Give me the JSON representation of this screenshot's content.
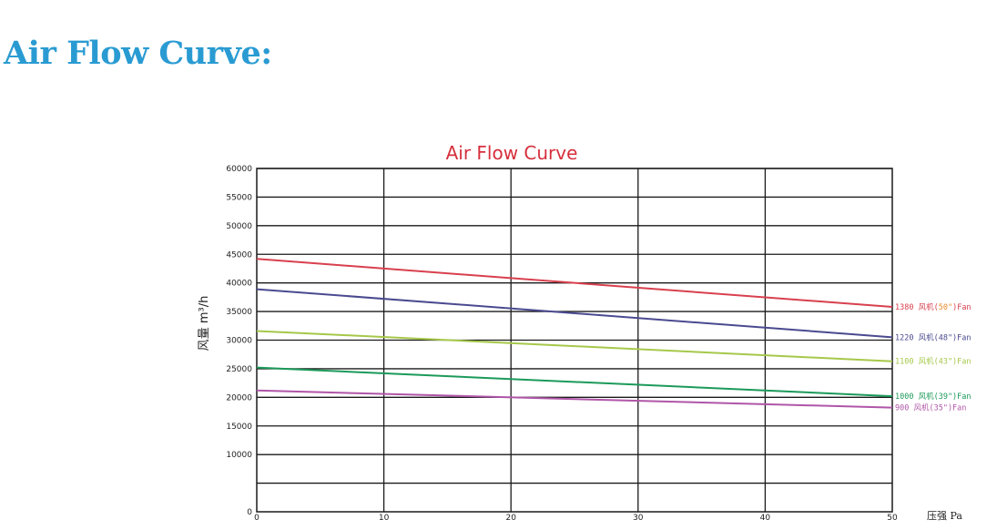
{
  "page": {
    "heading": "Air Flow Curve:"
  },
  "colors": {
    "heading": "#2a9bd2",
    "title": "#d62f3c",
    "grid": "#1a1a1a"
  },
  "chart_data": {
    "type": "line",
    "title": "Air Flow Curve",
    "ylabel": "风量 m³/h",
    "xlabel": "压强  Pa",
    "xlim": [
      0,
      50
    ],
    "ylim": [
      0,
      60000
    ],
    "xticks": [
      0,
      10,
      20,
      30,
      40,
      50
    ],
    "yticks": [
      0,
      10000,
      15000,
      20000,
      25000,
      30000,
      35000,
      40000,
      45000,
      50000,
      55000,
      60000
    ],
    "grid": true,
    "series": [
      {
        "name": "1380 风机(50\")Fan",
        "label_main": "1380 风机(",
        "label_inch": "50\"",
        "label_tail": ")Fan",
        "color": "#d8404e",
        "x": [
          0,
          50
        ],
        "y": [
          44200,
          35800
        ]
      },
      {
        "name": "1220 风机(48\")Fan",
        "label_main": "1220 风机(48\")Fan",
        "label_inch": "",
        "label_tail": "",
        "color": "#4a4a90",
        "x": [
          0,
          50
        ],
        "y": [
          38900,
          30500
        ]
      },
      {
        "name": "1100 风机(43\")Fan",
        "label_main": "1100 风机(43\")Fan",
        "label_inch": "",
        "label_tail": "",
        "color": "#a6c84a",
        "x": [
          0,
          50
        ],
        "y": [
          31600,
          26300
        ]
      },
      {
        "name": "1000 风机(39\")Fan",
        "label_main": "1000 风机(39\")Fan",
        "label_inch": "",
        "label_tail": "",
        "color": "#1c9a5a",
        "x": [
          0,
          50
        ],
        "y": [
          25200,
          20200
        ]
      },
      {
        "name": "900 风机(35\")Fan",
        "label_main": "900 风机(35\")Fan",
        "label_inch": "",
        "label_tail": "",
        "color": "#b056a8",
        "x": [
          0,
          50
        ],
        "y": [
          21200,
          18200
        ]
      }
    ]
  }
}
